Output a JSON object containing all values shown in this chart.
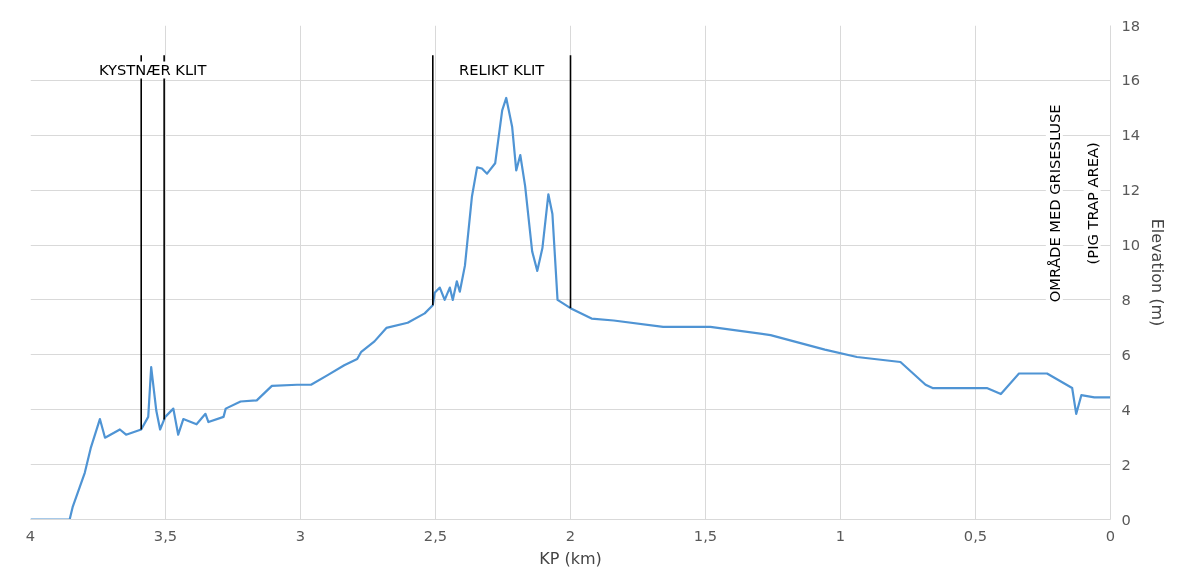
{
  "chart_data": {
    "type": "line",
    "xlabel": "KP (km)",
    "ylabel": "Elevation (m)",
    "xlim": [
      4,
      0
    ],
    "xticks": [
      4,
      {
        "value": 3.5,
        "label": "3,5"
      },
      3,
      {
        "value": 2.5,
        "label": "2,5"
      },
      2,
      {
        "value": 1.5,
        "label": "1,5"
      },
      1,
      {
        "value": 0.5,
        "label": "0,5"
      },
      0
    ],
    "ylim": [
      0,
      18
    ],
    "yticks": [
      0,
      2,
      4,
      6,
      8,
      10,
      12,
      14,
      16,
      18
    ],
    "grid": true,
    "marker": "none",
    "line_style": "solid",
    "series": [
      {
        "color": "#4f94d4",
        "x": [
          4,
          3.855,
          3.844,
          3.799,
          3.777,
          3.743,
          3.724,
          3.669,
          3.646,
          3.59,
          3.564,
          3.553,
          3.534,
          3.52,
          3.501,
          3.471,
          3.453,
          3.434,
          3.385,
          3.352,
          3.341,
          3.285,
          3.277,
          3.222,
          3.162,
          3.106,
          3.013,
          2.961,
          2.901,
          2.838,
          2.79,
          2.775,
          2.726,
          2.682,
          2.603,
          2.54,
          2.51,
          2.503,
          2.484,
          2.466,
          2.447,
          2.436,
          2.421,
          2.41,
          2.391,
          2.365,
          2.346,
          2.328,
          2.309,
          2.279,
          2.253,
          2.238,
          2.216,
          2.201,
          2.186,
          2.168,
          2.142,
          2.123,
          2.104,
          2.082,
          2.067,
          2.048,
          2.0,
          1.922,
          1.84,
          1.657,
          1.482,
          1.259,
          1.058,
          0.939,
          0.778,
          0.685,
          0.659,
          0.458,
          0.406,
          0.339,
          0.235,
          0.142,
          0.127,
          0.108,
          0.06,
          0.0
        ],
        "values": [
          0,
          0,
          0.45,
          1.7,
          2.6,
          3.66,
          2.98,
          3.28,
          3.09,
          3.28,
          3.74,
          5.55,
          3.96,
          3.28,
          3.74,
          4.04,
          3.09,
          3.66,
          3.47,
          3.85,
          3.55,
          3.74,
          4.04,
          4.3,
          4.34,
          4.87,
          4.91,
          4.91,
          5.25,
          5.62,
          5.85,
          6.11,
          6.49,
          6.98,
          7.17,
          7.51,
          7.81,
          8.26,
          8.45,
          8.0,
          8.45,
          8.0,
          8.68,
          8.3,
          9.25,
          11.77,
          12.83,
          12.79,
          12.6,
          12.98,
          14.91,
          15.36,
          14.3,
          12.72,
          13.28,
          12.15,
          9.77,
          9.06,
          9.89,
          11.85,
          11.13,
          8.0,
          7.7,
          7.32,
          7.25,
          7.02,
          7.02,
          6.72,
          6.19,
          5.92,
          5.74,
          4.91,
          4.79,
          4.79,
          4.57,
          5.32,
          5.32,
          4.79,
          3.85,
          4.53,
          4.45,
          4.45
        ]
      }
    ],
    "ref_lines": [
      {
        "axis": "x",
        "value": 3.59,
        "color": "#000000"
      },
      {
        "axis": "x",
        "value": 3.505,
        "color": "#000000"
      },
      {
        "axis": "x",
        "value": 2.51,
        "color": "#000000"
      },
      {
        "axis": "x",
        "value": 2.0,
        "color": "#000000"
      }
    ],
    "annotations": [
      "KYSTNÆR KLIT",
      "RELIKT KLIT",
      "OMRÅDE MED GRISESLUSE",
      "(PIG TRAP AREA)"
    ]
  }
}
